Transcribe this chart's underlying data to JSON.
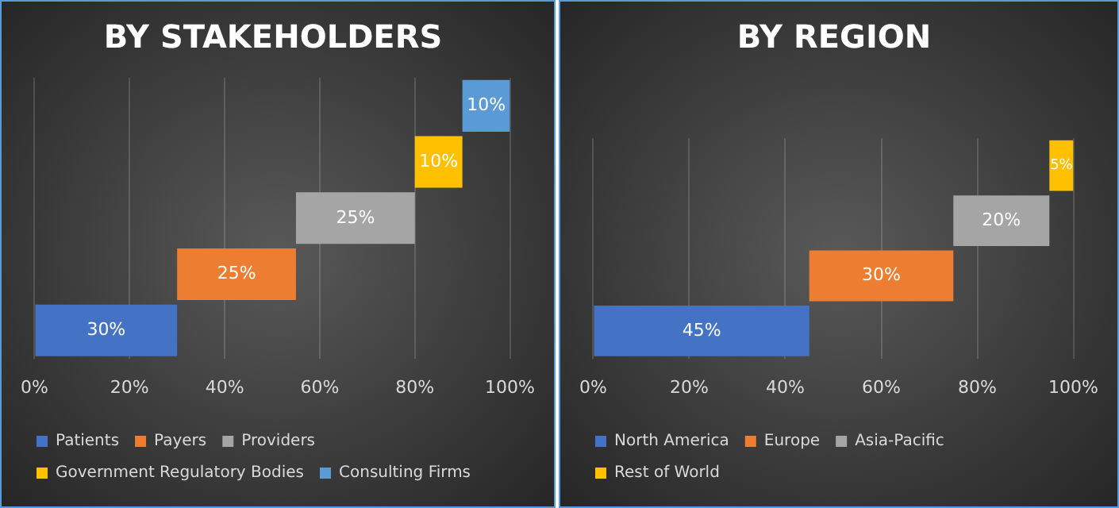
{
  "chart_data": [
    {
      "type": "bar",
      "title": "BY STAKEHOLDERS",
      "orientation": "horizontal",
      "categories": [
        null,
        null,
        null,
        null,
        null
      ],
      "xlim": [
        0,
        100
      ],
      "xticks": [
        {
          "value": 0,
          "label": "0%"
        },
        {
          "value": 20,
          "label": "20%"
        },
        {
          "value": 40,
          "label": "40%"
        },
        {
          "value": 60,
          "label": "60%"
        },
        {
          "value": 80,
          "label": "80%"
        },
        {
          "value": 100,
          "label": "100%"
        }
      ],
      "grid": "x",
      "legend": "bottom",
      "series": [
        {
          "name": "Patients",
          "color": "#4472c4",
          "values": [
            null,
            null,
            null,
            null,
            30
          ],
          "base": [
            null,
            null,
            null,
            null,
            0
          ],
          "value_labels": [
            null,
            null,
            null,
            null,
            "30%"
          ]
        },
        {
          "name": "Payers",
          "color": "#ed7d31",
          "values": [
            null,
            null,
            null,
            25,
            null
          ],
          "base": [
            null,
            null,
            null,
            30,
            null
          ],
          "value_labels": [
            null,
            null,
            null,
            "25%",
            null
          ]
        },
        {
          "name": "Providers",
          "color": "#a5a5a5",
          "values": [
            null,
            null,
            25,
            null,
            null
          ],
          "base": [
            null,
            null,
            55,
            null,
            null
          ],
          "value_labels": [
            null,
            null,
            "25%",
            null,
            null
          ]
        },
        {
          "name": "Government Regulatory Bodies",
          "color": "#ffc000",
          "values": [
            null,
            10,
            null,
            null,
            null
          ],
          "base": [
            null,
            80,
            null,
            null,
            null
          ],
          "value_labels": [
            null,
            "10%",
            null,
            null,
            null
          ]
        },
        {
          "name": "Consulting Firms",
          "color": "#5b9bd5",
          "values": [
            10,
            null,
            null,
            null,
            null
          ],
          "base": [
            90,
            null,
            null,
            null,
            null
          ],
          "value_labels": [
            "10%",
            null,
            null,
            null,
            null
          ]
        }
      ]
    },
    {
      "type": "bar",
      "title": "BY REGION",
      "orientation": "horizontal",
      "categories": [
        null,
        null,
        null,
        null
      ],
      "xlim": [
        0,
        100
      ],
      "xticks": [
        {
          "value": 0,
          "label": "0%"
        },
        {
          "value": 20,
          "label": "20%"
        },
        {
          "value": 40,
          "label": "40%"
        },
        {
          "value": 60,
          "label": "60%"
        },
        {
          "value": 80,
          "label": "80%"
        },
        {
          "value": 100,
          "label": "100%"
        }
      ],
      "grid": "x",
      "legend": "bottom",
      "series": [
        {
          "name": "North America",
          "color": "#4472c4",
          "values": [
            null,
            null,
            null,
            45
          ],
          "base": [
            null,
            null,
            null,
            0
          ],
          "value_labels": [
            null,
            null,
            null,
            "45%"
          ]
        },
        {
          "name": "Europe",
          "color": "#ed7d31",
          "values": [
            null,
            null,
            30,
            null
          ],
          "base": [
            null,
            null,
            45,
            null
          ],
          "value_labels": [
            null,
            null,
            "30%",
            null
          ]
        },
        {
          "name": "Asia-Pacific",
          "color": "#a5a5a5",
          "values": [
            null,
            20,
            null,
            null
          ],
          "base": [
            null,
            75,
            null,
            null
          ],
          "value_labels": [
            null,
            "20%",
            null,
            null
          ]
        },
        {
          "name": "Rest of World",
          "color": "#ffc000",
          "values": [
            5,
            null,
            null,
            null
          ],
          "base": [
            95,
            null,
            null,
            null
          ],
          "value_labels": [
            "5%",
            null,
            null,
            null
          ]
        }
      ]
    }
  ]
}
